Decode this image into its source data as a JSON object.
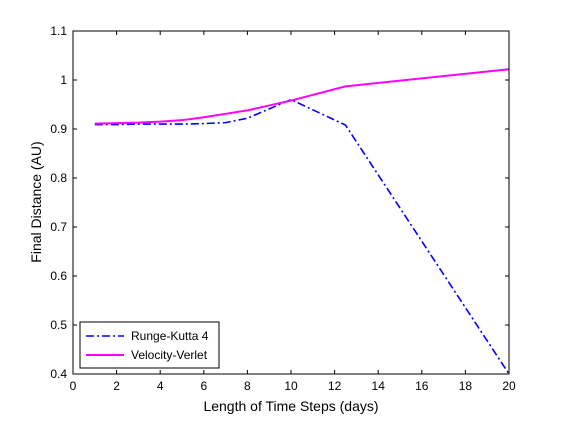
{
  "chart_data": {
    "type": "line",
    "title": "",
    "xlabel": "Length of Time Steps (days)",
    "ylabel": "Final Distance (AU)",
    "xlim": [
      0,
      20
    ],
    "ylim": [
      0.4,
      1.1
    ],
    "xticks": [
      0,
      2,
      4,
      6,
      8,
      10,
      12,
      14,
      16,
      18,
      20
    ],
    "yticks": [
      0.4,
      0.5,
      0.6,
      0.7,
      0.8,
      0.9,
      1,
      1.1
    ],
    "xtick_labels": [
      "0",
      "2",
      "4",
      "6",
      "8",
      "10",
      "12",
      "14",
      "16",
      "18",
      "20"
    ],
    "ytick_labels": [
      "0.4",
      "0.5",
      "0.6",
      "0.7",
      "0.8",
      "0.9",
      "1",
      "1.1"
    ],
    "grid": false,
    "legend_position": "bottom-left",
    "series": [
      {
        "name": "Runge-Kutta 4",
        "color": "#0000ff",
        "style": "dash-dot",
        "x": [
          1,
          2,
          3,
          4,
          5,
          6,
          7,
          8,
          10,
          12.5,
          20
        ],
        "y": [
          0.909,
          0.909,
          0.91,
          0.91,
          0.91,
          0.911,
          0.913,
          0.922,
          0.96,
          0.908,
          0.4
        ]
      },
      {
        "name": "Velocity-Verlet",
        "color": "#ff00ff",
        "style": "solid",
        "x": [
          1,
          2,
          3,
          4,
          5,
          6,
          7,
          8,
          10,
          12.5,
          20
        ],
        "y": [
          0.911,
          0.912,
          0.913,
          0.915,
          0.918,
          0.924,
          0.931,
          0.938,
          0.958,
          0.987,
          1.022
        ]
      }
    ]
  }
}
